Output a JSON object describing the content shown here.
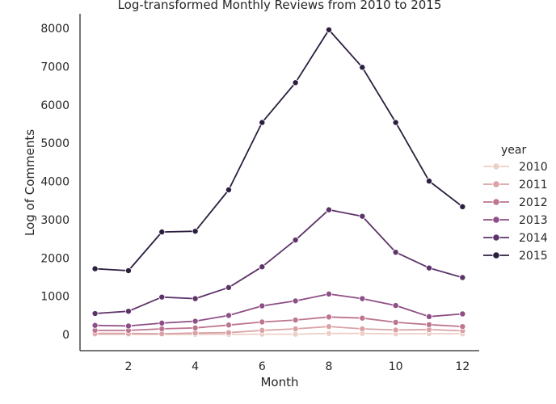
{
  "chart_data": {
    "type": "line",
    "title": "Log-transformed Monthly Reviews from 2010 to 2015",
    "xlabel": "Month",
    "ylabel": "Log of Comments",
    "x": [
      1,
      2,
      3,
      4,
      5,
      6,
      7,
      8,
      9,
      10,
      11,
      12
    ],
    "xticks": [
      "2",
      "4",
      "6",
      "8",
      "10",
      "12"
    ],
    "xtick_values": [
      2,
      4,
      6,
      8,
      10,
      12
    ],
    "yticks": [
      "0",
      "1000",
      "2000",
      "3000",
      "4000",
      "5000",
      "6000",
      "7000",
      "8000"
    ],
    "ytick_values": [
      0,
      1000,
      2000,
      3000,
      4000,
      5000,
      6000,
      7000,
      8000
    ],
    "xlim": [
      0.55,
      12.5
    ],
    "ylim": [
      -420,
      8380
    ],
    "grid": false,
    "legend": {
      "title": "year",
      "placement": "right"
    },
    "series": [
      {
        "name": "2010",
        "color": "#ecd0c8",
        "values": [
          5,
          5,
          5,
          5,
          5,
          10,
          10,
          30,
          30,
          20,
          25,
          20
        ]
      },
      {
        "name": "2011",
        "color": "#daa2a6",
        "values": [
          30,
          30,
          20,
          40,
          50,
          110,
          150,
          210,
          150,
          120,
          130,
          100
        ]
      },
      {
        "name": "2012",
        "color": "#bd7591",
        "values": [
          110,
          110,
          150,
          175,
          250,
          330,
          380,
          460,
          430,
          320,
          260,
          210
        ]
      },
      {
        "name": "2013",
        "color": "#8e4e86",
        "values": [
          240,
          225,
          300,
          350,
          500,
          750,
          880,
          1060,
          940,
          760,
          470,
          540
        ]
      },
      {
        "name": "2014",
        "color": "#5d3469",
        "values": [
          550,
          610,
          980,
          940,
          1230,
          1770,
          2470,
          3260,
          3090,
          2150,
          1740,
          1490
        ]
      },
      {
        "name": "2015",
        "color": "#2c1e3e",
        "values": [
          1720,
          1670,
          2680,
          2700,
          3780,
          5540,
          6580,
          7960,
          6980,
          5540,
          4010,
          3340
        ]
      }
    ]
  }
}
